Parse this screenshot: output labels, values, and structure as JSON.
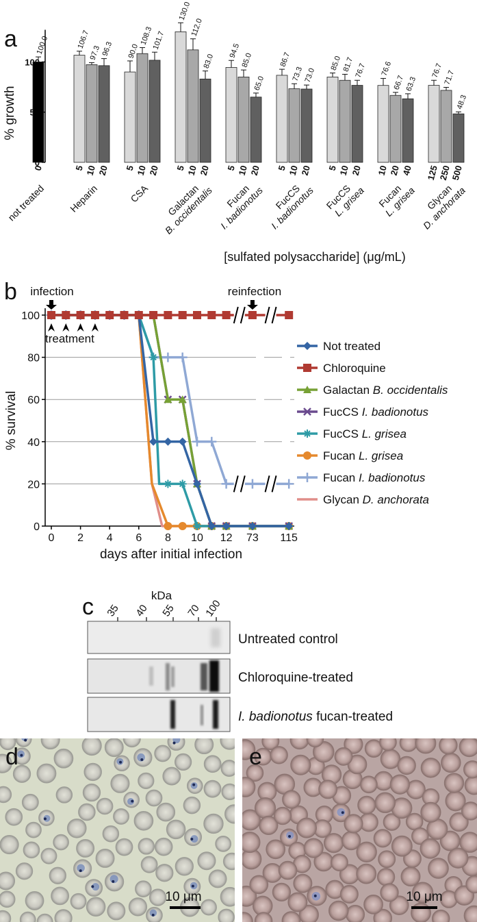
{
  "panel_a": {
    "letter": "a",
    "ylabel": "% growth",
    "yticks": [
      "0",
      "50",
      "100"
    ],
    "xlabel": "[sulfated polysaccharide] (μg/mL)",
    "colors": {
      "not_treated": "#000000",
      "low": "#d9d9d9",
      "mid": "#a8a8a8",
      "high": "#606060"
    },
    "groups": [
      {
        "name": "not treated",
        "italic": "",
        "doses": [
          "0"
        ],
        "values": [
          100.0
        ],
        "labels": [
          "100.0"
        ]
      },
      {
        "name": "Heparin",
        "italic": "",
        "doses": [
          "5",
          "10",
          "20"
        ],
        "values": [
          106.7,
          97.3,
          96.3
        ],
        "labels": [
          "106.7",
          "97.3",
          "96.3"
        ]
      },
      {
        "name": "CSA",
        "italic": "",
        "doses": [
          "5",
          "10",
          "20"
        ],
        "values": [
          90.0,
          108.3,
          101.7
        ],
        "labels": [
          "90.0",
          "108.3",
          "101.7"
        ]
      },
      {
        "name": "Galactan",
        "italic": "B. occidentalis",
        "doses": [
          "5",
          "10",
          "20"
        ],
        "values": [
          130.0,
          112.0,
          83.0
        ],
        "labels": [
          "130.0",
          "112.0",
          "83.0"
        ]
      },
      {
        "name": "Fucan",
        "italic": "I. badionotus",
        "doses": [
          "5",
          "10",
          "20"
        ],
        "values": [
          94.5,
          85.0,
          65.0
        ],
        "labels": [
          "94.5",
          "85.0",
          "65.0"
        ]
      },
      {
        "name": "FucCS",
        "italic": "I. badionotus",
        "doses": [
          "5",
          "10",
          "20"
        ],
        "values": [
          86.7,
          73.3,
          73.0
        ],
        "labels": [
          "86.7",
          "73.3",
          "73.0"
        ]
      },
      {
        "name": "FucCS",
        "italic": "L. grisea",
        "doses": [
          "5",
          "10",
          "20"
        ],
        "values": [
          85.0,
          81.7,
          76.7
        ],
        "labels": [
          "85.0",
          "81.7",
          "76.7"
        ]
      },
      {
        "name": "Fucan",
        "italic": "L. grisea",
        "doses": [
          "10",
          "20",
          "40"
        ],
        "values": [
          76.6,
          66.7,
          63.3
        ],
        "labels": [
          "76.6",
          "66.7",
          "63.3"
        ]
      },
      {
        "name": "Glycan",
        "italic": "D. anchorata",
        "doses": [
          "125",
          "250",
          "500"
        ],
        "values": [
          76.7,
          71.7,
          48.3
        ],
        "labels": [
          "76.7",
          "71.7",
          "48.3"
        ]
      }
    ],
    "errors": [
      [
        5
      ],
      [
        4,
        2,
        7
      ],
      [
        11,
        6,
        8
      ],
      [
        9,
        11,
        8
      ],
      [
        7,
        7,
        4
      ],
      [
        6,
        5,
        4
      ],
      [
        4,
        6,
        5
      ],
      [
        7,
        3,
        5
      ],
      [
        5,
        3,
        2
      ]
    ]
  },
  "panel_b": {
    "letter": "b",
    "ylabel": "% survival",
    "xlabel": "days after initial infection",
    "yticks": [
      "0",
      "20",
      "40",
      "60",
      "80",
      "100"
    ],
    "xticks": [
      "0",
      "2",
      "4",
      "6",
      "8",
      "10",
      "12",
      "73",
      "115"
    ],
    "infection_label": "infection",
    "reinfection_label": "reinfection",
    "treatment_label": "treatment",
    "series": [
      {
        "name": "Not treated",
        "italic": "",
        "color": "#3465a4",
        "marker": "diamond",
        "points": [
          [
            0,
            100
          ],
          [
            1,
            100
          ],
          [
            2,
            100
          ],
          [
            3,
            100
          ],
          [
            4,
            100
          ],
          [
            5,
            100
          ],
          [
            6,
            100
          ],
          [
            7,
            40
          ],
          [
            8,
            40
          ],
          [
            9,
            40
          ],
          [
            10,
            20
          ],
          [
            11,
            0
          ],
          [
            12,
            0
          ],
          [
            13,
            0
          ],
          [
            14,
            0
          ]
        ]
      },
      {
        "name": "Chloroquine",
        "italic": "",
        "color": "#b03a32",
        "marker": "square",
        "points": [
          [
            0,
            100
          ],
          [
            1,
            100
          ],
          [
            2,
            100
          ],
          [
            3,
            100
          ],
          [
            4,
            100
          ],
          [
            5,
            100
          ],
          [
            6,
            100
          ],
          [
            7,
            100
          ],
          [
            8,
            100
          ],
          [
            9,
            100
          ],
          [
            10,
            100
          ],
          [
            11,
            100
          ],
          [
            12,
            100
          ],
          [
            13,
            100
          ],
          [
            14,
            100
          ]
        ]
      },
      {
        "name": "Galactan",
        "italic": "B. occidentalis",
        "color": "#77a135",
        "marker": "triangle",
        "points": [
          [
            0,
            100
          ],
          [
            1,
            100
          ],
          [
            2,
            100
          ],
          [
            3,
            100
          ],
          [
            4,
            100
          ],
          [
            5,
            100
          ],
          [
            6,
            100
          ],
          [
            7,
            100
          ],
          [
            8,
            60
          ],
          [
            9,
            60
          ],
          [
            10,
            20
          ],
          [
            11,
            0
          ],
          [
            12,
            0
          ],
          [
            13,
            0
          ],
          [
            14,
            0
          ]
        ]
      },
      {
        "name": "FucCS",
        "italic": "I. badionotus",
        "color": "#6a4a8e",
        "marker": "x",
        "points": [
          [
            0,
            100
          ],
          [
            1,
            100
          ],
          [
            2,
            100
          ],
          [
            3,
            100
          ],
          [
            4,
            100
          ],
          [
            5,
            100
          ],
          [
            6,
            100
          ],
          [
            7,
            100
          ],
          [
            8,
            60
          ],
          [
            9,
            60
          ],
          [
            10,
            20
          ],
          [
            11,
            0
          ],
          [
            12,
            0
          ],
          [
            13,
            0
          ],
          [
            14,
            0
          ]
        ]
      },
      {
        "name": "FucCS",
        "italic": "L. grisea",
        "color": "#2e9ba6",
        "marker": "star",
        "points": [
          [
            0,
            100
          ],
          [
            1,
            100
          ],
          [
            2,
            100
          ],
          [
            3,
            100
          ],
          [
            4,
            100
          ],
          [
            5,
            100
          ],
          [
            6,
            100
          ],
          [
            7,
            80
          ],
          [
            7.4,
            20
          ],
          [
            8,
            20
          ],
          [
            9,
            20
          ],
          [
            10,
            0
          ],
          [
            11,
            0
          ],
          [
            12,
            0
          ],
          [
            13,
            0
          ],
          [
            14,
            0
          ]
        ]
      },
      {
        "name": "Fucan",
        "italic": "L. grisea",
        "color": "#e5892d",
        "marker": "circle",
        "points": [
          [
            0,
            100
          ],
          [
            1,
            100
          ],
          [
            2,
            100
          ],
          [
            3,
            100
          ],
          [
            4,
            100
          ],
          [
            5,
            100
          ],
          [
            6,
            100
          ],
          [
            6.9,
            20
          ],
          [
            8,
            0
          ],
          [
            9,
            0
          ],
          [
            10,
            0
          ],
          [
            11,
            0
          ],
          [
            12,
            0
          ],
          [
            13,
            0
          ],
          [
            14,
            0
          ]
        ]
      },
      {
        "name": "Fucan",
        "italic": "I. badionotus",
        "color": "#8fa8d4",
        "marker": "plus",
        "points": [
          [
            0,
            100
          ],
          [
            1,
            100
          ],
          [
            2,
            100
          ],
          [
            3,
            100
          ],
          [
            4,
            100
          ],
          [
            5,
            100
          ],
          [
            6,
            100
          ],
          [
            7,
            80
          ],
          [
            8,
            80
          ],
          [
            9,
            80
          ],
          [
            10,
            40
          ],
          [
            11,
            40
          ],
          [
            12,
            20
          ],
          [
            13,
            20
          ],
          [
            14,
            20
          ]
        ]
      },
      {
        "name": "Glycan",
        "italic": "D. anchorata",
        "color": "#e08e8a",
        "marker": "none",
        "points": [
          [
            0,
            100
          ],
          [
            6,
            100
          ],
          [
            6.9,
            20
          ],
          [
            7.6,
            0
          ],
          [
            8,
            0
          ],
          [
            14,
            0
          ]
        ]
      }
    ]
  },
  "panel_c": {
    "letter": "c",
    "unit": "kDa",
    "markers": [
      "35",
      "40",
      "55",
      "70",
      "100"
    ],
    "lanes": [
      {
        "label": "Untreated control",
        "italic": ""
      },
      {
        "label": "Chloroquine-treated",
        "italic": ""
      },
      {
        "label": " fucan-treated",
        "italic": "I. badionotus"
      }
    ]
  },
  "panel_d": {
    "letter": "d",
    "scale": "10 μm"
  },
  "panel_e": {
    "letter": "e",
    "scale": "10 μm"
  }
}
